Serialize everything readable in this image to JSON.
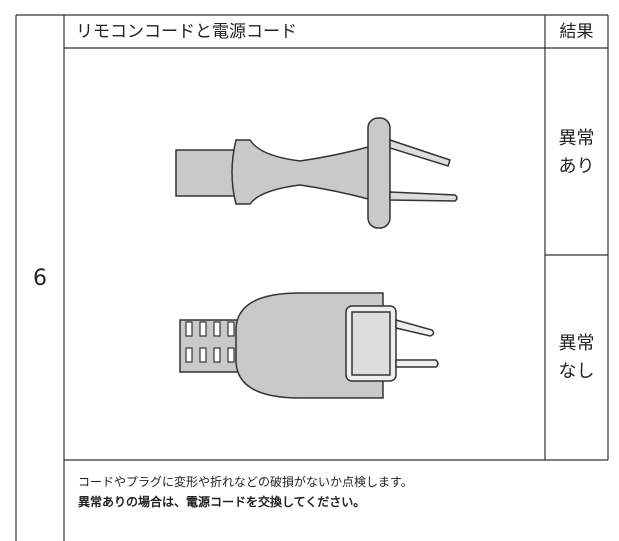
{
  "row_number": "6",
  "header": {
    "title": "リモコンコードと電源コード",
    "result": "結果"
  },
  "results": [
    {
      "line1": "異常",
      "line2": "あり"
    },
    {
      "line1": "異常",
      "line2": "なし"
    }
  ],
  "note": {
    "line1": "コードやプラグに変形や折れなどの破損がないか点検します。",
    "line2": "異常ありの場合は、電源コードを交換してください。"
  }
}
